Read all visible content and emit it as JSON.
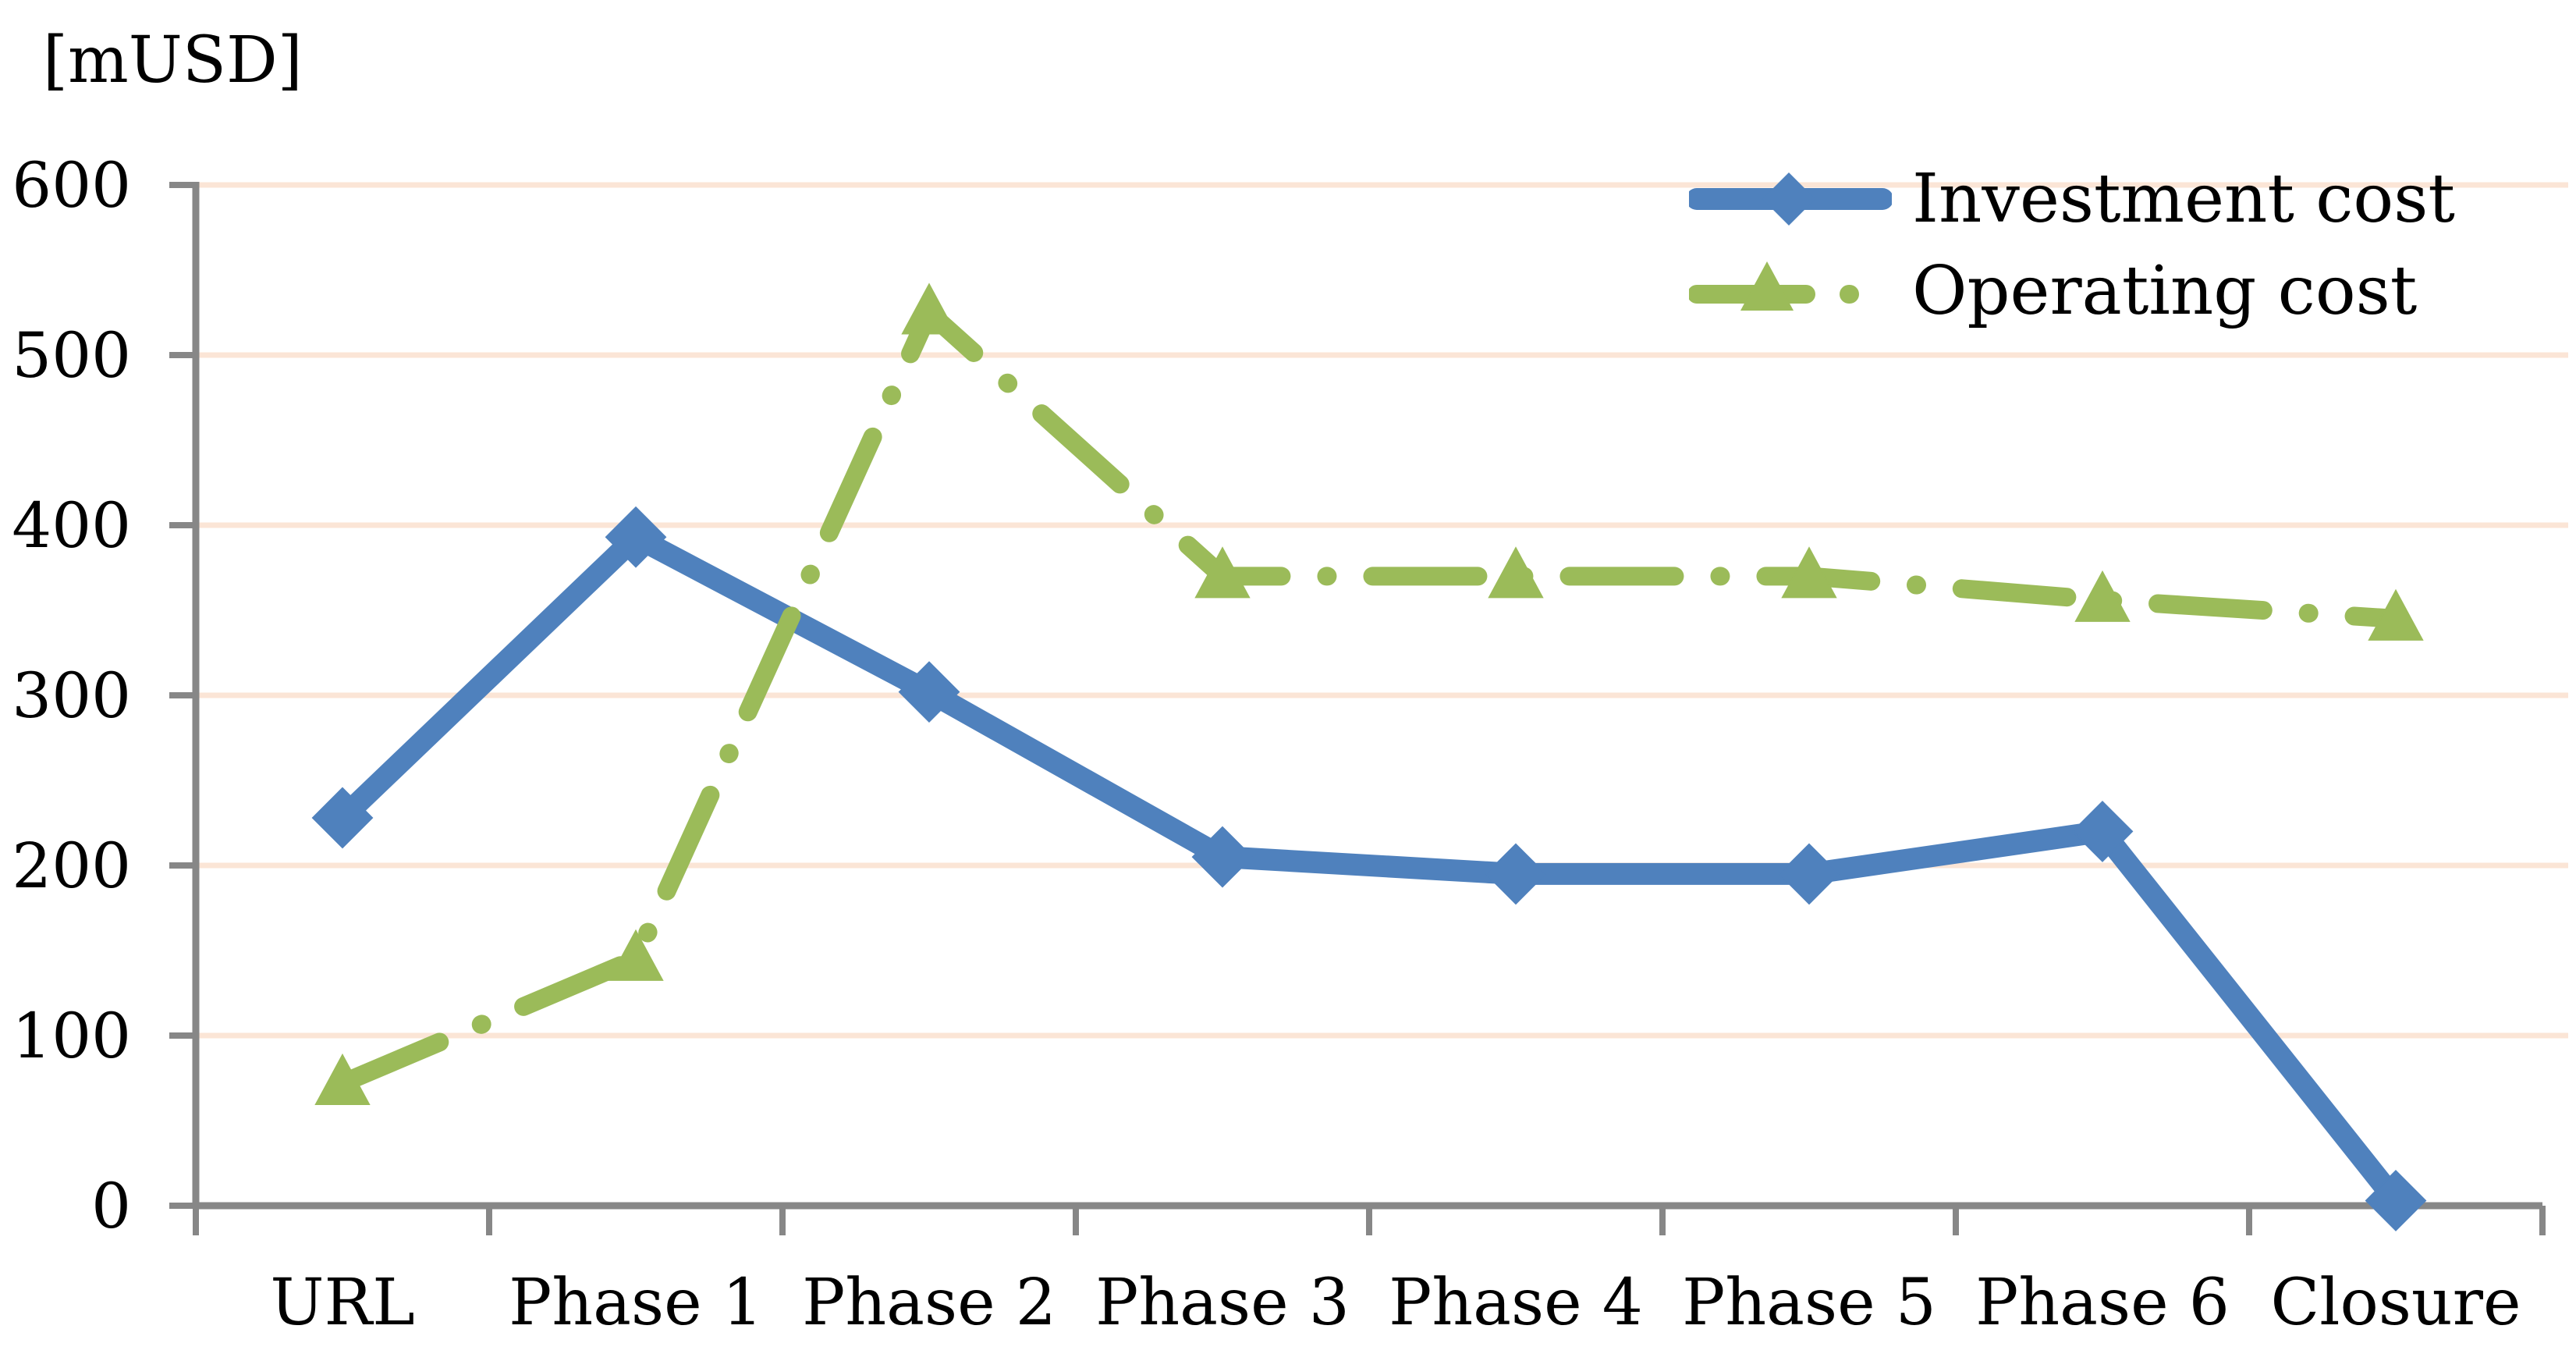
{
  "chart_data": {
    "type": "line",
    "unit_label": "[mUSD]",
    "categories": [
      "URL",
      "Phase 1",
      "Phase 2",
      "Phase 3",
      "Phase 4",
      "Phase 5",
      "Phase 6",
      "Closure"
    ],
    "series": [
      {
        "name": "Investment cost",
        "color": "#4F81BD",
        "marker": "diamond",
        "line_style": "solid",
        "values": [
          228,
          393,
          302,
          205,
          195,
          195,
          220,
          3
        ]
      },
      {
        "name": "Operating cost",
        "color": "#9BBB59",
        "marker": "triangle",
        "line_style": "dash-dot",
        "values": [
          72,
          145,
          525,
          370,
          370,
          370,
          356,
          345
        ]
      }
    ],
    "xlabel": "",
    "ylabel": "[mUSD]",
    "ylim": [
      0,
      600
    ],
    "ytick_step": 100,
    "yticks": [
      "0",
      "100",
      "200",
      "300",
      "400",
      "500",
      "600"
    ],
    "grid": "horizontal",
    "legend_position": "top-right",
    "colors": {
      "gridline": "#FBE5D6",
      "axis": "#878787",
      "text": "#000000",
      "background": "#FFFFFF"
    }
  }
}
